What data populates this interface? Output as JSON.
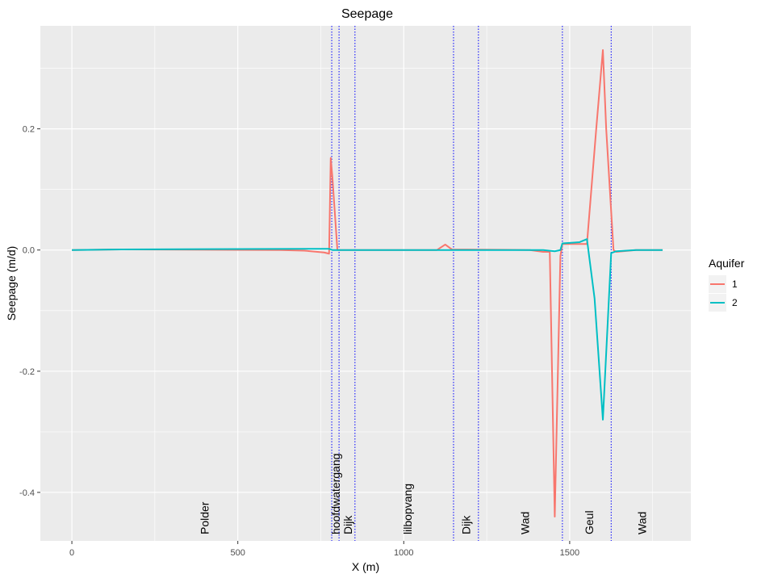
{
  "chart_data": {
    "type": "line",
    "title": "Seepage",
    "xlabel": "X (m)",
    "ylabel": "Seepage (m/d)",
    "xlim": [
      -95,
      1865
    ],
    "ylim": [
      -0.48,
      0.37
    ],
    "x_ticks": [
      0,
      500,
      1000,
      1500
    ],
    "x_tick_labels": [
      "0",
      "500",
      "1000",
      "1500"
    ],
    "y_ticks": [
      -0.4,
      -0.2,
      0.0,
      0.2
    ],
    "y_tick_labels": [
      "-0.4",
      "-0.2",
      "0.0",
      "0.2"
    ],
    "grid": true,
    "background": "#ebebeb",
    "legend": {
      "title": "Aquifer",
      "position": "right",
      "entries": [
        {
          "label": "1",
          "color": "#f8766d"
        },
        {
          "label": "2",
          "color": "#00bfc4"
        }
      ]
    },
    "series": [
      {
        "name": "1",
        "color": "#f8766d",
        "x": [
          0,
          150,
          630,
          700,
          760,
          775,
          780,
          785,
          800,
          1100,
          1125,
          1145,
          1380,
          1420,
          1440,
          1455,
          1472,
          1478,
          1552,
          1580,
          1600,
          1610,
          1632,
          1640,
          1700,
          1780
        ],
        "y": [
          0.0,
          0.001,
          0.0,
          -0.001,
          -0.004,
          -0.006,
          0.152,
          0.12,
          0.0,
          0.0,
          0.009,
          0.001,
          0.0,
          -0.003,
          -0.003,
          -0.44,
          -0.01,
          0.01,
          0.01,
          0.2,
          0.33,
          0.2,
          0.0,
          -0.003,
          0.0,
          0.0
        ]
      },
      {
        "name": "2",
        "color": "#00bfc4",
        "x": [
          0,
          150,
          775,
          785,
          1100,
          1380,
          1420,
          1455,
          1472,
          1478,
          1530,
          1552,
          1575,
          1600,
          1625,
          1640,
          1700,
          1780
        ],
        "y": [
          0.0,
          0.001,
          0.002,
          0.0,
          0.0,
          0.0,
          0.0,
          -0.002,
          0.0,
          0.011,
          0.013,
          0.018,
          -0.08,
          -0.28,
          -0.005,
          -0.002,
          0.0,
          0.0
        ]
      }
    ],
    "boundaries": {
      "style": "dotted",
      "color": "#0000ff",
      "x": [
        783,
        805,
        853,
        1150,
        1225,
        1478,
        1625
      ]
    },
    "zone_labels": [
      {
        "text": "Polder",
        "x": 400
      },
      {
        "text": "hoofdwatergang",
        "x": 795
      },
      {
        "text": "Dijk",
        "x": 832
      },
      {
        "text": "lilbopvang",
        "x": 1012
      },
      {
        "text": "Dijk",
        "x": 1188
      },
      {
        "text": "Wad",
        "x": 1365
      },
      {
        "text": "Geul",
        "x": 1558
      },
      {
        "text": "Wad",
        "x": 1718
      }
    ]
  }
}
